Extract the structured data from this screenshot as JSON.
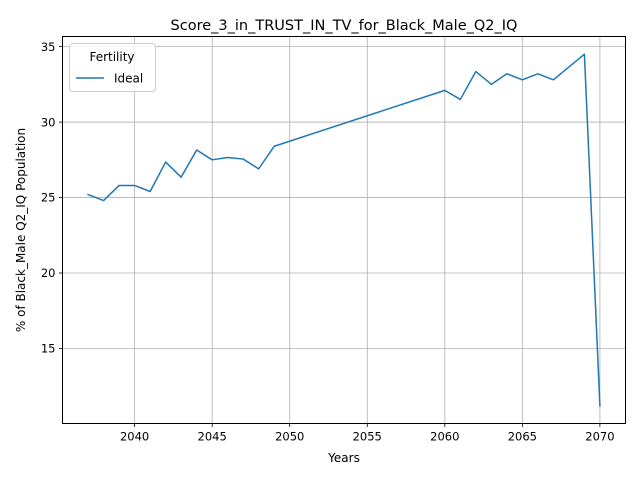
{
  "chart_data": {
    "type": "line",
    "title": "Score_3_in_TRUST_IN_TV_for_Black_Male_Q2_IQ",
    "xlabel": "Years",
    "ylabel": "% of Black_Male Q2_IQ Population",
    "xlim": [
      2035.35,
      2071.65
    ],
    "ylim": [
      10.03,
      35.67
    ],
    "x_ticks": [
      2040,
      2045,
      2050,
      2055,
      2060,
      2065,
      2070
    ],
    "y_ticks": [
      15,
      20,
      25,
      30,
      35
    ],
    "grid": true,
    "legend": {
      "title": "Fertility",
      "placement": "top-left"
    },
    "colors": {
      "line": "#1f77b4",
      "grid": "#b0b0b0"
    },
    "series": [
      {
        "name": "Ideal",
        "x": [
          2037,
          2038,
          2039,
          2040,
          2041,
          2042,
          2043,
          2044,
          2045,
          2046,
          2047,
          2048,
          2049,
          2060,
          2061,
          2062,
          2063,
          2064,
          2065,
          2066,
          2067,
          2069,
          2070
        ],
        "values": [
          25.2,
          24.8,
          25.8,
          25.8,
          25.4,
          27.35,
          26.35,
          28.15,
          27.5,
          27.65,
          27.55,
          26.9,
          28.4,
          32.1,
          31.5,
          33.35,
          32.5,
          33.2,
          32.8,
          33.2,
          32.8,
          34.5,
          11.2
        ]
      }
    ]
  }
}
